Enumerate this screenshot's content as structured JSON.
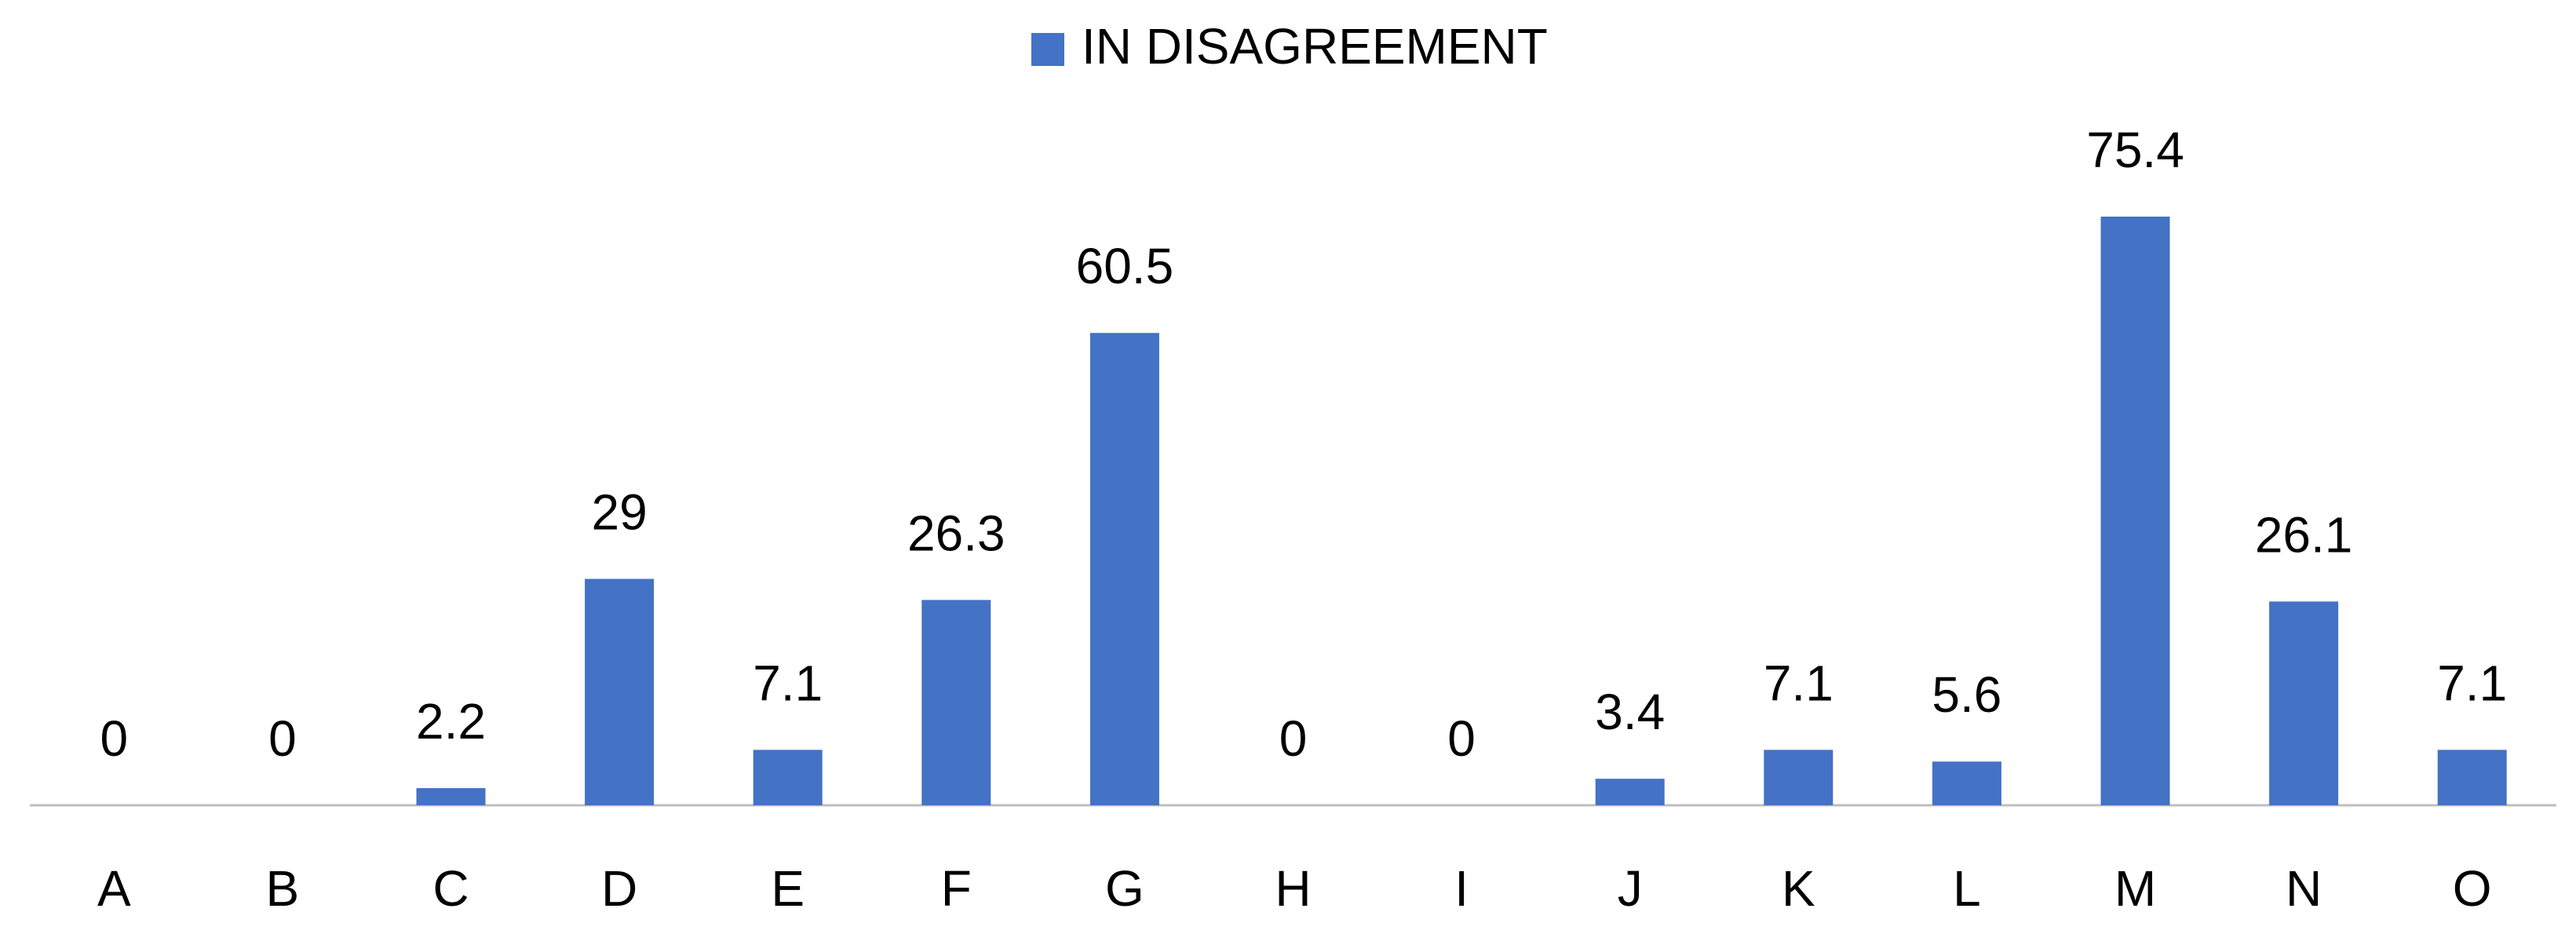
{
  "chart_data": {
    "type": "bar",
    "categories": [
      "A",
      "B",
      "C",
      "D",
      "E",
      "F",
      "G",
      "H",
      "I",
      "J",
      "K",
      "L",
      "M",
      "N",
      "O"
    ],
    "series": [
      {
        "name": "IN DISAGREEMENT",
        "color": "#4472c4",
        "values": [
          0,
          0,
          2.2,
          29,
          7.1,
          26.3,
          60.5,
          0,
          0,
          3.4,
          7.1,
          5.6,
          75.4,
          26.1,
          7.1
        ]
      }
    ],
    "legend": "top"
  }
}
